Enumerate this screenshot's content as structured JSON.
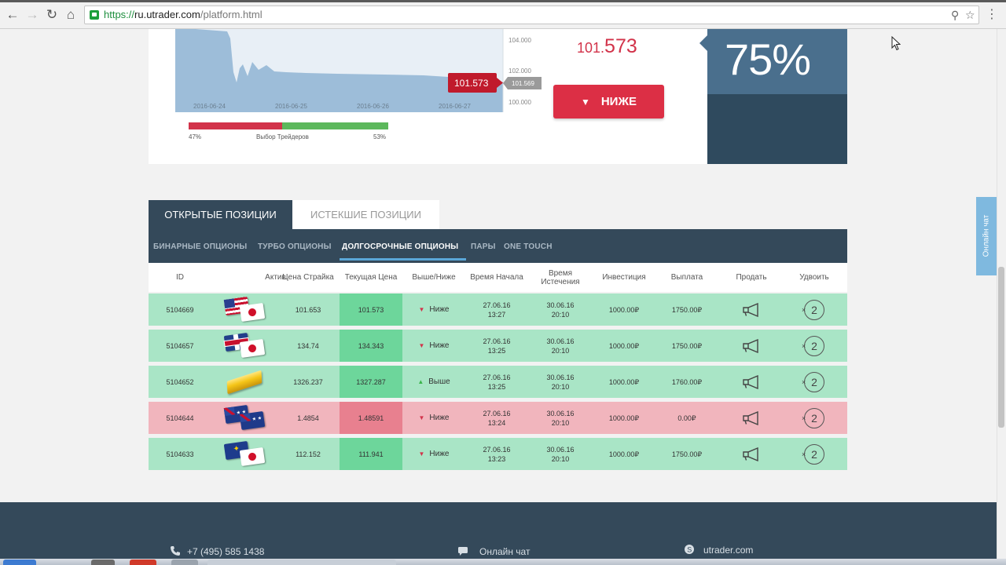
{
  "browser": {
    "url_scheme": "https://",
    "url_host": "ru.utrader.com",
    "url_path": "/platform.html"
  },
  "chart": {
    "y_ticks": [
      "104.000",
      "102.000",
      "100.000"
    ],
    "x_ticks": [
      "2016-06-24",
      "2016-06-25",
      "2016-06-26",
      "2016-06-27"
    ],
    "current_price_label": "101.573",
    "side_price_label": "101.569"
  },
  "trade": {
    "price_int": "101.",
    "price_dec": "573",
    "lower_button": "НИЖЕ",
    "payout": "75%"
  },
  "sentiment": {
    "label": "Выбор Трейдеров",
    "down_pct_label": "47%",
    "up_pct_label": "53%",
    "down_fraction": 0.47,
    "up_fraction": 0.53,
    "down_color": "#d2334a",
    "up_color": "#5cb85c"
  },
  "tabs": {
    "open": "ОТКРЫТЫЕ ПОЗИЦИИ",
    "expired": "ИСТЕКШИЕ ПОЗИЦИИ"
  },
  "subnav": [
    "БИНАРНЫЕ ОПЦИОНЫ",
    "ТУРБО ОПЦИОНЫ",
    "ДОЛГОСРОЧНЫЕ ОПЦИОНЫ",
    "ПАРЫ",
    "ONE TOUCH"
  ],
  "table": {
    "headers": [
      "ID",
      "Актив",
      "Цена Страйка",
      "Текущая Цена",
      "Выше/Ниже",
      "Время Начала",
      "Время Истечения",
      "Инвестиция",
      "Выплата",
      "Продать",
      "Удвоить"
    ],
    "rows": [
      {
        "id": "5104669",
        "asset": "us-jp-flags",
        "strike": "101.653",
        "current": "101.573",
        "dir": "Ниже",
        "dir_icon": "down",
        "start_date": "27.06.16",
        "start_time": "13:27",
        "exp_date": "30.06.16",
        "exp_time": "20:10",
        "investment": "1000.00₽",
        "payout": "1750.00₽",
        "status": "green"
      },
      {
        "id": "5104657",
        "asset": "uk-jp-flags",
        "strike": "134.74",
        "current": "134.343",
        "dir": "Ниже",
        "dir_icon": "down",
        "start_date": "27.06.16",
        "start_time": "13:25",
        "exp_date": "30.06.16",
        "exp_time": "20:10",
        "investment": "1000.00₽",
        "payout": "1750.00₽",
        "status": "green"
      },
      {
        "id": "5104652",
        "asset": "gold-bar",
        "strike": "1326.237",
        "current": "1327.287",
        "dir": "Выше",
        "dir_icon": "up",
        "start_date": "27.06.16",
        "start_time": "13:25",
        "exp_date": "30.06.16",
        "exp_time": "20:10",
        "investment": "1000.00₽",
        "payout": "1760.00₽",
        "status": "green"
      },
      {
        "id": "5104644",
        "asset": "au-nz-flags",
        "strike": "1.4854",
        "current": "1.48591",
        "dir": "Ниже",
        "dir_icon": "down",
        "start_date": "27.06.16",
        "start_time": "13:24",
        "exp_date": "30.06.16",
        "exp_time": "20:10",
        "investment": "1000.00₽",
        "payout": "0.00₽",
        "status": "red"
      },
      {
        "id": "5104633",
        "asset": "eu-jp-flags",
        "strike": "112.152",
        "current": "111.941",
        "dir": "Ниже",
        "dir_icon": "down",
        "start_date": "27.06.16",
        "start_time": "13:23",
        "exp_date": "30.06.16",
        "exp_time": "20:10",
        "investment": "1000.00₽",
        "payout": "1750.00₽",
        "status": "green"
      }
    ]
  },
  "footer": {
    "phone": "+7 (495) 585 1438",
    "chat": "Онлайн чат",
    "skype": "utrader.com"
  },
  "side_chat": "Онлайн чат",
  "colors": {
    "panel_dark": "#34495a",
    "row_green": "#a9e5c6",
    "row_red": "#f1b5bd",
    "accent_red": "#dc2f45"
  }
}
